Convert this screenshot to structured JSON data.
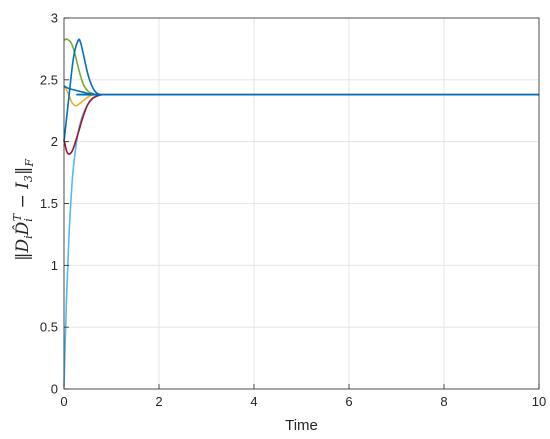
{
  "chart_data": {
    "type": "line",
    "title": "",
    "xlabel": "Time",
    "ylabel": "‖DᵢD̂ᵢᵀ − I₃‖F",
    "xlim": [
      0,
      10
    ],
    "ylim": [
      0,
      3
    ],
    "xticks": [
      "0",
      "2",
      "4",
      "6",
      "8",
      "10"
    ],
    "yticks": [
      "0",
      "0.5",
      "1",
      "1.5",
      "2",
      "2.5",
      "3"
    ],
    "grid": true,
    "legend": "none",
    "series": [
      {
        "color": "#4dbeee",
        "x": [
          0,
          0.05,
          0.1,
          0.15,
          0.2,
          0.3,
          0.4,
          0.5,
          0.6,
          0.7,
          0.8,
          1.0,
          10
        ],
        "y": [
          0.02,
          0.7,
          1.2,
          1.55,
          1.8,
          2.08,
          2.22,
          2.3,
          2.35,
          2.37,
          2.38,
          2.38,
          2.38
        ]
      },
      {
        "color": "#a2142f",
        "x": [
          0,
          0.05,
          0.1,
          0.15,
          0.2,
          0.3,
          0.4,
          0.5,
          0.6,
          0.7,
          0.8,
          1.0,
          10
        ],
        "y": [
          2.02,
          1.93,
          1.9,
          1.91,
          1.95,
          2.07,
          2.2,
          2.3,
          2.35,
          2.37,
          2.38,
          2.38,
          2.38
        ]
      },
      {
        "color": "#edb120",
        "x": [
          0,
          0.05,
          0.1,
          0.15,
          0.2,
          0.25,
          0.3,
          0.4,
          0.5,
          0.6,
          0.7,
          0.8,
          1.0,
          10
        ],
        "y": [
          2.45,
          2.42,
          2.38,
          2.33,
          2.3,
          2.29,
          2.3,
          2.33,
          2.36,
          2.38,
          2.38,
          2.38,
          2.38,
          2.38
        ]
      },
      {
        "color": "#77ac30",
        "x": [
          0,
          0.05,
          0.1,
          0.15,
          0.2,
          0.25,
          0.3,
          0.4,
          0.5,
          0.6,
          0.7,
          0.8,
          1.0,
          10
        ],
        "y": [
          2.82,
          2.83,
          2.82,
          2.8,
          2.75,
          2.68,
          2.6,
          2.47,
          2.41,
          2.39,
          2.38,
          2.38,
          2.38,
          2.38
        ]
      },
      {
        "color": "#0072bd",
        "x": [
          0,
          0.1,
          0.2,
          0.3,
          0.35,
          0.4,
          0.5,
          0.6,
          0.7,
          0.8,
          1.0,
          10
        ],
        "y": [
          2.0,
          2.35,
          2.68,
          2.82,
          2.8,
          2.72,
          2.55,
          2.44,
          2.39,
          2.38,
          2.38,
          2.38
        ]
      },
      {
        "color": "#0072bd",
        "x": [
          0,
          0.1,
          0.2,
          0.3,
          0.4,
          0.5,
          0.6,
          0.7,
          0.8,
          1.0,
          10
        ],
        "y": [
          2.45,
          2.43,
          2.42,
          2.41,
          2.4,
          2.39,
          2.385,
          2.38,
          2.38,
          2.38,
          2.38
        ]
      }
    ]
  }
}
